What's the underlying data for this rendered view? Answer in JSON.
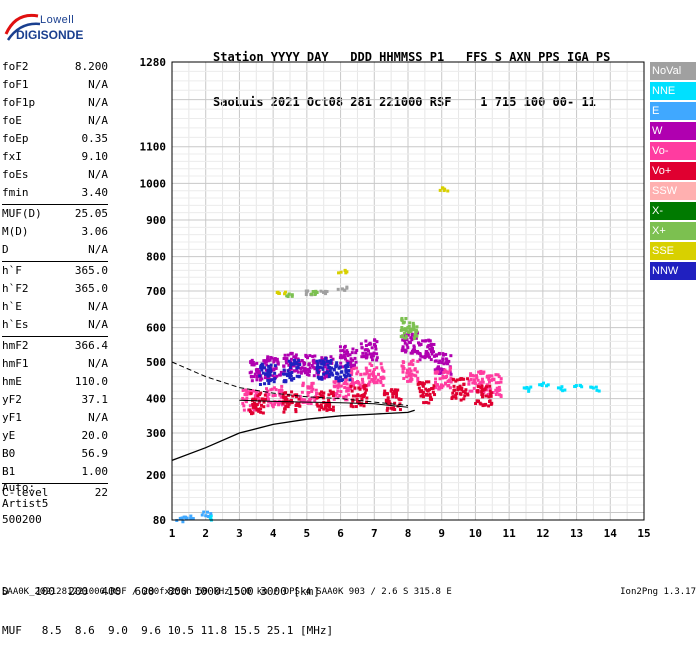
{
  "logo": {
    "line1": "Lowell",
    "line2": "DIGISONDE"
  },
  "header": {
    "line1": "Station YYYY DAY   DDD HHMMSS P1   FFS S AXN PPS IGA PS",
    "line2": "SaoLuis 2021 Oct08 281 221000 RSF    1 715 100 00- 11"
  },
  "params": [
    {
      "k": "foF2",
      "v": "8.200"
    },
    {
      "k": "foF1",
      "v": "N/A"
    },
    {
      "k": "foF1p",
      "v": "N/A"
    },
    {
      "k": "foE",
      "v": "N/A"
    },
    {
      "k": "foEp",
      "v": "0.35"
    },
    {
      "k": "fxI",
      "v": "9.10"
    },
    {
      "k": "foEs",
      "v": "N/A"
    },
    {
      "k": "fmin",
      "v": "3.40"
    },
    {
      "k": "MUF(D)",
      "v": "25.05",
      "sep": true
    },
    {
      "k": "M(D)",
      "v": "3.06"
    },
    {
      "k": "D",
      "v": "N/A"
    },
    {
      "k": "h`F",
      "v": "365.0",
      "sep": true
    },
    {
      "k": "h`F2",
      "v": "365.0"
    },
    {
      "k": "h`E",
      "v": "N/A"
    },
    {
      "k": "h`Es",
      "v": "N/A"
    },
    {
      "k": "hmF2",
      "v": "366.4",
      "sep": true
    },
    {
      "k": "hmF1",
      "v": "N/A"
    },
    {
      "k": "hmE",
      "v": "110.0"
    },
    {
      "k": "yF2",
      "v": "37.1"
    },
    {
      "k": "yF1",
      "v": "N/A"
    },
    {
      "k": "yE",
      "v": "20.0"
    },
    {
      "k": "B0",
      "v": "56.9"
    },
    {
      "k": "B1",
      "v": "1.00"
    },
    {
      "k": "C-level",
      "v": "22",
      "sep": true
    }
  ],
  "auto": {
    "line1": "Auto:",
    "line2": "Artist5",
    "line3": "500200"
  },
  "legend": [
    {
      "label": "NoVal",
      "color": "#a0a0a0"
    },
    {
      "label": "NNE",
      "color": "#00e0ff"
    },
    {
      "label": "E",
      "color": "#40a8ff"
    },
    {
      "label": "W",
      "color": "#b000b0"
    },
    {
      "label": "Vo-",
      "color": "#ff3ca0"
    },
    {
      "label": "Vo+",
      "color": "#e00030"
    },
    {
      "label": "SSW",
      "color": "#ffb0b0"
    },
    {
      "label": "X-",
      "color": "#007a00"
    },
    {
      "label": "X+",
      "color": "#7cc050"
    },
    {
      "label": "SSE",
      "color": "#d8d000"
    },
    {
      "label": "NNW",
      "color": "#2020c0"
    }
  ],
  "footer": {
    "line1": "D    100  200  400  600  800 1000 1500 3000 [km]",
    "line2": "MUF   8.5  8.6  9.0  9.6 10.5 11.8 15.5 25.1 [MHz]"
  },
  "file_line": "SAA0K_2021281221000.RSF / 280fx256h 50 kHz 5.0 km / DPS-4 SAA0K 903 / 2.6 S 315.8 E",
  "version": "Ion2Png 1.3.17",
  "chart_data": {
    "type": "scatter",
    "title": "",
    "xlabel": "",
    "ylabel": "",
    "xlim": [
      1,
      15
    ],
    "ylim": [
      80,
      1280
    ],
    "x_ticks": [
      1,
      2,
      3,
      4,
      5,
      6,
      7,
      8,
      9,
      10,
      11,
      12,
      13,
      14,
      15
    ],
    "y_ticks": [
      80,
      200,
      300,
      400,
      500,
      600,
      700,
      800,
      900,
      1000,
      1100,
      1280
    ],
    "y_scale": "ionogram (non-linear)",
    "grid": true,
    "legend_position": "right",
    "series": [
      {
        "name": "W",
        "points": [
          [
            3.5,
            480
          ],
          [
            4.0,
            490
          ],
          [
            4.5,
            500
          ],
          [
            5.0,
            495
          ],
          [
            5.5,
            490
          ],
          [
            6.2,
            520
          ],
          [
            6.8,
            540
          ],
          [
            8.0,
            560
          ],
          [
            8.5,
            540
          ],
          [
            9.0,
            500
          ]
        ]
      },
      {
        "name": "Vo-",
        "points": [
          [
            3.3,
            400
          ],
          [
            4.0,
            410
          ],
          [
            5.0,
            420
          ],
          [
            6.0,
            430
          ],
          [
            6.5,
            460
          ],
          [
            7.0,
            470
          ],
          [
            8.0,
            480
          ],
          [
            9.0,
            460
          ],
          [
            10.0,
            450
          ],
          [
            10.5,
            440
          ]
        ]
      },
      {
        "name": "Vo+",
        "points": [
          [
            3.5,
            390
          ],
          [
            4.5,
            395
          ],
          [
            5.5,
            400
          ],
          [
            6.5,
            410
          ],
          [
            7.5,
            400
          ],
          [
            8.5,
            420
          ],
          [
            9.5,
            430
          ],
          [
            10.2,
            410
          ]
        ]
      },
      {
        "name": "NNW",
        "points": [
          [
            3.8,
            470
          ],
          [
            4.5,
            480
          ],
          [
            5.5,
            485
          ],
          [
            6.0,
            480
          ]
        ]
      },
      {
        "name": "NNE",
        "points": [
          [
            11.5,
            430
          ],
          [
            12.0,
            440
          ],
          [
            12.5,
            430
          ],
          [
            13.0,
            440
          ],
          [
            13.5,
            430
          ],
          [
            2.0,
            90
          ]
        ]
      },
      {
        "name": "E",
        "points": [
          [
            1.2,
            85
          ],
          [
            1.5,
            88
          ],
          [
            2.0,
            100
          ]
        ]
      },
      {
        "name": "NoVal",
        "points": [
          [
            5.0,
            700
          ],
          [
            5.5,
            700
          ],
          [
            6.0,
            710
          ]
        ]
      },
      {
        "name": "X+",
        "points": [
          [
            4.5,
            690
          ],
          [
            5.2,
            700
          ],
          [
            8.0,
            600
          ]
        ]
      },
      {
        "name": "SSE",
        "points": [
          [
            4.2,
            700
          ],
          [
            6.0,
            760
          ],
          [
            9.0,
            990
          ]
        ]
      }
    ],
    "lines": [
      {
        "name": "O-trace profile",
        "style": "solid",
        "points": [
          [
            1.0,
            235
          ],
          [
            2.0,
            265
          ],
          [
            3.0,
            300
          ],
          [
            4.0,
            325
          ],
          [
            5.0,
            340
          ],
          [
            6.0,
            350
          ],
          [
            7.0,
            355
          ],
          [
            8.0,
            360
          ],
          [
            8.2,
            366
          ]
        ]
      },
      {
        "name": "X-trace model",
        "style": "dashed",
        "points": [
          [
            1.0,
            500
          ],
          [
            2.0,
            460
          ],
          [
            3.0,
            430
          ],
          [
            4.0,
            415
          ],
          [
            5.0,
            405
          ],
          [
            6.0,
            400
          ],
          [
            7.0,
            390
          ],
          [
            8.0,
            380
          ]
        ]
      },
      {
        "name": "O-trace model",
        "style": "solid-thin",
        "points": [
          [
            3.0,
            395
          ],
          [
            4.0,
            392
          ],
          [
            5.0,
            390
          ],
          [
            6.0,
            388
          ],
          [
            7.0,
            385
          ],
          [
            8.0,
            375
          ]
        ]
      }
    ]
  }
}
